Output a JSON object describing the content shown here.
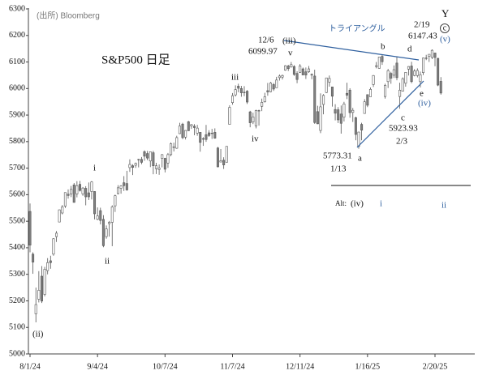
{
  "chart_data": {
    "type": "candlestick",
    "title": "S&P500 日足",
    "source": "(出所) Bloomberg",
    "categories": [
      "8/1/24",
      null,
      null,
      null,
      null,
      null,
      null,
      null,
      null,
      null,
      null,
      null,
      null,
      null,
      null,
      null,
      null,
      null,
      null,
      null,
      null,
      null,
      null,
      "9/4/24",
      null,
      null,
      null,
      null,
      null,
      null,
      null,
      null,
      null,
      null,
      null,
      null,
      null,
      null,
      null,
      null,
      null,
      null,
      null,
      null,
      null,
      null,
      "10/7/24",
      null,
      null,
      null,
      null,
      null,
      null,
      null,
      null,
      null,
      null,
      null,
      null,
      null,
      null,
      null,
      null,
      null,
      null,
      null,
      null,
      null,
      null,
      "11/7/24",
      null,
      null,
      null,
      null,
      null,
      null,
      null,
      null,
      null,
      null,
      null,
      null,
      null,
      null,
      null,
      null,
      null,
      null,
      null,
      null,
      null,
      null,
      "12/11/24",
      null,
      null,
      null,
      null,
      null,
      null,
      null,
      null,
      null,
      null,
      null,
      null,
      null,
      null,
      null,
      null,
      null,
      null,
      null,
      null,
      null,
      null,
      "1/16/25",
      null,
      null,
      null,
      null,
      null,
      null,
      null,
      null,
      null,
      null,
      null,
      null,
      null,
      null,
      null,
      null,
      null,
      null,
      null,
      null,
      null,
      null,
      "2/20/25",
      null,
      null
    ],
    "open": [
      5537,
      5376,
      5151,
      5206,
      5293,
      5224,
      5314,
      5351,
      5376,
      5442,
      5497,
      5531,
      5557,
      5602,
      5603,
      5637,
      5603,
      5639,
      5603,
      5624,
      5607,
      5612,
      5612,
      5507,
      5540,
      5507,
      5442,
      5491,
      5496,
      5558,
      5604,
      5624,
      5645,
      5642,
      5702,
      5709,
      5711,
      5733,
      5733,
      5762,
      5755,
      5727,
      5758,
      5698,
      5695,
      5737,
      5737,
      5719,
      5751,
      5778,
      5775,
      5830,
      5866,
      5817,
      5875,
      5859,
      5858,
      5832,
      5835,
      5811,
      5826,
      5833,
      5832,
      5835,
      5776,
      5723,
      5730,
      5722,
      5865,
      5947,
      5976,
      6009,
      6000,
      5986,
      5990,
      5912,
      5874,
      5859,
      5917,
      5933,
      5950,
      5992,
      5988,
      6015,
      6003,
      6041,
      6043,
      6069,
      6085,
      6081,
      6083,
      6057,
      6061,
      6074,
      6063,
      6063,
      6053,
      6047,
      5913,
      5842,
      5940,
      5985,
      6024,
      6006,
      5921,
      5920,
      5904,
      5892,
      5982,
      5994,
      5910,
      5890,
      5782,
      5865,
      5906,
      5977,
      5969,
      6015,
      6083,
      6076,
      6121,
      5970,
      6026,
      6057,
      6050,
      6096,
      5970,
      5990,
      6020,
      6073,
      6085,
      6049,
      6049,
      6026,
      6060,
      6115,
      6121,
      6117,
      6134,
      6114,
      6027
    ],
    "high": [
      5567,
      5383,
      5250,
      5312,
      5331,
      5328,
      5361,
      5370,
      5436,
      5463,
      5544,
      5561,
      5608,
      5620,
      5633,
      5644,
      5651,
      5652,
      5629,
      5632,
      5646,
      5651,
      5613,
      5552,
      5551,
      5523,
      5484,
      5501,
      5560,
      5600,
      5636,
      5636,
      5670,
      5690,
      5733,
      5715,
      5721,
      5735,
      5742,
      5767,
      5765,
      5763,
      5765,
      5720,
      5714,
      5753,
      5739,
      5757,
      5797,
      5796,
      5822,
      5871,
      5871,
      5843,
      5878,
      5866,
      5866,
      5863,
      5835,
      5817,
      5863,
      5843,
      5848,
      5850,
      5780,
      5772,
      5741,
      5783,
      5937,
      5983,
      6012,
      6018,
      6010,
      6009,
      5994,
      5916,
      5909,
      5920,
      5920,
      5962,
      5984,
      6021,
      6025,
      6021,
      6044,
      6053,
      6053,
      6088,
      6089,
      6099.97,
      6088,
      6065,
      6092,
      6079,
      6079,
      6085,
      6057,
      6071,
      5935,
      5982,
      5979,
      6040,
      6049,
      6007,
      5941,
      5930,
      5936,
      5950,
      6022,
      6001,
      5927,
      5894,
      5837,
      5871,
      5960,
      5977,
      6004,
      6051,
      6100,
      6119,
      6128,
      6018,
      6074,
      6063,
      6087,
      6121,
      6022,
      6042,
      6062,
      6084,
      6101,
      6073,
      6076,
      6064,
      6116,
      6127,
      6129,
      6147.43,
      6134,
      6114,
      6043
    ],
    "low": [
      5383,
      5302,
      5119,
      5194,
      5192,
      5217,
      5300,
      5321,
      5370,
      5422,
      5496,
      5526,
      5550,
      5585,
      5591,
      5570,
      5590,
      5612,
      5596,
      5560,
      5580,
      5582,
      5507,
      5504,
      5488,
      5402,
      5434,
      5442,
      5406,
      5535,
      5601,
      5604,
      5614,
      5615,
      5686,
      5674,
      5701,
      5703,
      5715,
      5728,
      5730,
      5704,
      5677,
      5678,
      5675,
      5703,
      5684,
      5701,
      5745,
      5763,
      5773,
      5829,
      5809,
      5808,
      5840,
      5848,
      5824,
      5822,
      5762,
      5784,
      5799,
      5818,
      5810,
      5811,
      5703,
      5723,
      5697,
      5722,
      5865,
      5939,
      5970,
      5986,
      5969,
      5971,
      5942,
      5854,
      5866,
      5850,
      5860,
      5915,
      5947,
      5973,
      5986,
      5991,
      6003,
      6030,
      6034,
      6067,
      6066,
      6079,
      6048,
      6020,
      6059,
      6051,
      6036,
      6059,
      6035,
      5867,
      5866,
      5832,
      5903,
      5983,
      6007,
      5932,
      5880,
      5870,
      5830,
      5876,
      5960,
      5890,
      5874,
      5805,
      5773.31,
      5805,
      5906,
      5930,
      5969,
      6006,
      6076,
      6075,
      6089,
      5962,
      6002,
      6018,
      6040,
      6031,
      5923.93,
      5989,
      6007,
      6049,
      6020,
      6046,
      6042,
      6004,
      6051,
      6107,
      6100,
      6111,
      6084,
      6009,
      5977
    ],
    "close": [
      5410,
      5346,
      5186,
      5240,
      5199,
      5319,
      5344,
      5344,
      5434,
      5455,
      5543,
      5554,
      5608,
      5597,
      5620,
      5571,
      5634,
      5616,
      5625,
      5592,
      5592,
      5648,
      5528,
      5520,
      5503,
      5408,
      5471,
      5496,
      5554,
      5596,
      5626,
      5633,
      5634,
      5618,
      5714,
      5703,
      5718,
      5732,
      5722,
      5745,
      5738,
      5762,
      5709,
      5709,
      5700,
      5751,
      5696,
      5751,
      5792,
      5780,
      5815,
      5859,
      5815,
      5842,
      5841,
      5864,
      5853,
      5851,
      5797,
      5809,
      5808,
      5823,
      5832,
      5813,
      5705,
      5728,
      5712,
      5782,
      5929,
      5973,
      5996,
      6001,
      5984,
      5985,
      5949,
      5871,
      5893,
      5917,
      5917,
      5948,
      5969,
      5987,
      6021,
      5998,
      6032,
      6047,
      6049,
      6086,
      6075,
      6090,
      6053,
      6034,
      6085,
      6051,
      6051,
      6074,
      6051,
      5872,
      5867,
      5931,
      5974,
      6040,
      6038,
      5971,
      5907,
      5882,
      5869,
      5942,
      5975,
      5909,
      5918,
      5827,
      5836,
      5843,
      5950,
      5937,
      5997,
      6049,
      6086,
      6119,
      6101,
      6012,
      6067,
      6039,
      6071,
      6041,
      5994,
      6037,
      6061,
      6083,
      6026,
      6066,
      6068,
      6052,
      6115,
      6115,
      6129,
      6144,
      6117,
      6013,
      5983
    ],
    "up_color": "#ffffff",
    "down_color": "#808080",
    "edge_color": "#555555",
    "ylim": [
      5000,
      6300
    ],
    "yticks": [
      5000,
      5100,
      5200,
      5300,
      5400,
      5500,
      5600,
      5700,
      5800,
      5900,
      6000,
      6100,
      6200,
      6300
    ],
    "annotations": {
      "ii_paren": "(ii)",
      "i": "i",
      "ii": "ii",
      "iii": "iii",
      "iv": "iv",
      "iii_paren": "(iii)",
      "v": "v",
      "date_dec6": "12/6",
      "triangle": "トライアングル",
      "a": "a",
      "b": "b",
      "c": "c",
      "d": "d",
      "e": "e",
      "iv_paren": "(iv)",
      "date_feb19": "2/19",
      "Y": "Y",
      "c_circled": "c",
      "v_paren": "(v)",
      "date_jan13": "1/13",
      "date_feb3": "2/3",
      "alt": "Alt:",
      "alt_iv": "(iv)",
      "alt_i": "i",
      "alt_ii": "ii"
    }
  }
}
